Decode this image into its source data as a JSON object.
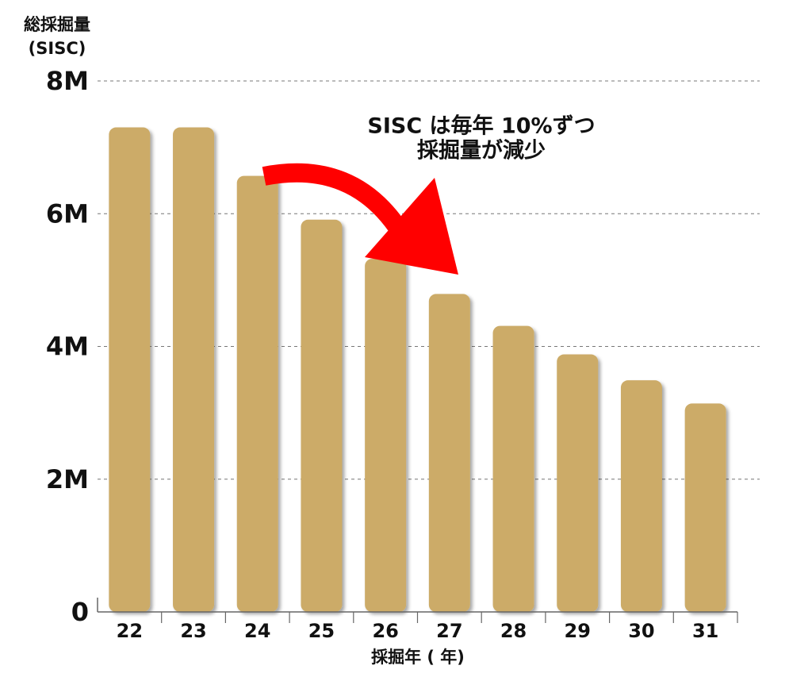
{
  "chart_data": {
    "type": "bar",
    "y_label_lines": [
      "総採掘量",
      "(SISC)"
    ],
    "x_label": "採掘年 ( 年)",
    "annotation_lines": [
      "SISC は毎年 10%ずつ",
      "採掘量が減少"
    ],
    "categories": [
      "22",
      "23",
      "24",
      "25",
      "26",
      "27",
      "28",
      "29",
      "30",
      "31"
    ],
    "values": [
      7300000,
      7300000,
      6570000,
      5910000,
      5320000,
      4790000,
      4310000,
      3880000,
      3490000,
      3140000
    ],
    "color": "#ccab67",
    "ylim": [
      0,
      8000000
    ],
    "yticks": [
      0,
      {
        "value": 2000000,
        "label": "2M"
      },
      {
        "value": 4000000,
        "label": "4M"
      },
      {
        "value": 6000000,
        "label": "6M"
      },
      {
        "value": 8000000,
        "label": "8M"
      }
    ],
    "grid": true
  }
}
